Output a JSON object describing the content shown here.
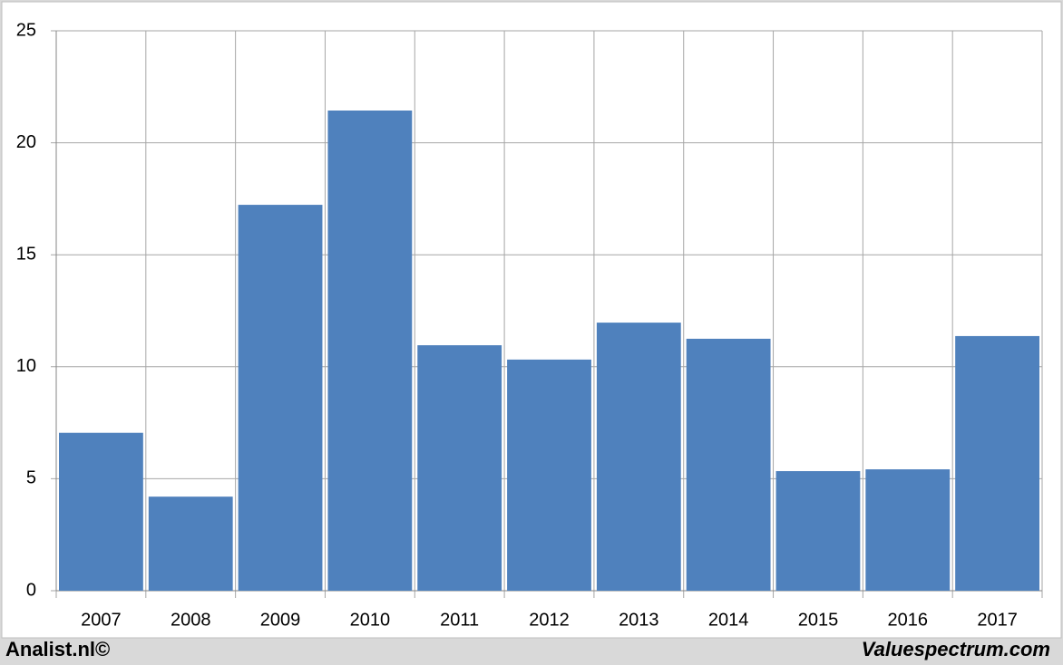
{
  "chart_data": {
    "type": "bar",
    "categories": [
      "2007",
      "2008",
      "2009",
      "2010",
      "2011",
      "2012",
      "2013",
      "2014",
      "2015",
      "2016",
      "2017"
    ],
    "values": [
      7.05,
      4.2,
      17.23,
      21.44,
      10.96,
      10.32,
      11.97,
      11.25,
      5.34,
      5.42,
      11.37
    ],
    "color": "#4f81bd",
    "ylim": [
      0,
      25
    ],
    "yticks": [
      0,
      5,
      10,
      15,
      20,
      25
    ],
    "grid": true,
    "footer_left": "Analist.nl©",
    "footer_right": "Valuespectrum.com"
  }
}
